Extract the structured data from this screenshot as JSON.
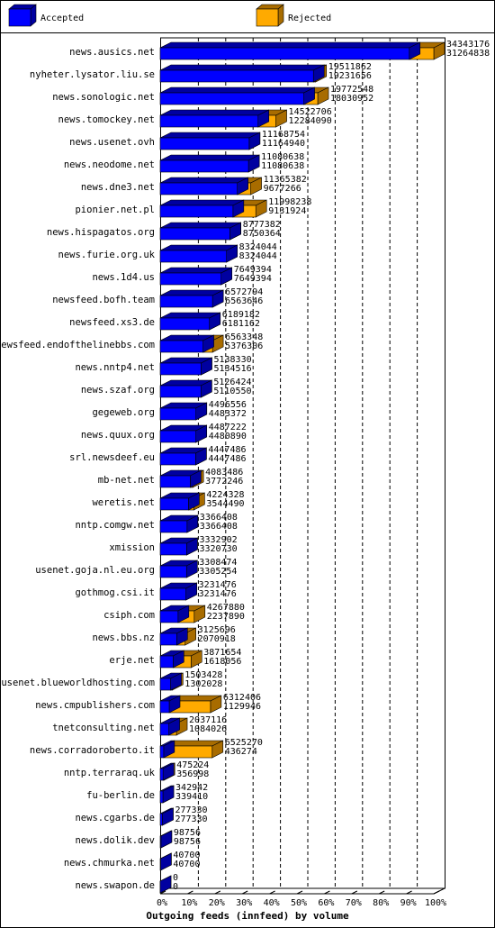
{
  "chart_data": {
    "type": "bar3d",
    "orientation": "horizontal",
    "title": "Outgoing feeds (innfeed) by volume",
    "categories": [
      "news.ausics.net",
      "nyheter.lysator.liu.se",
      "news.sonologic.net",
      "news.tomockey.net",
      "news.usenet.ovh",
      "news.neodome.net",
      "news.dne3.net",
      "pionier.net.pl",
      "news.hispagatos.org",
      "news.furie.org.uk",
      "news.1d4.us",
      "newsfeed.bofh.team",
      "newsfeed.xs3.de",
      "newsfeed.endofthelinebbs.com",
      "news.nntp4.net",
      "news.szaf.org",
      "gegeweb.org",
      "news.quux.org",
      "srl.newsdeef.eu",
      "mb-net.net",
      "weretis.net",
      "nntp.comgw.net",
      "xmission",
      "usenet.goja.nl.eu.org",
      "gothmog.csi.it",
      "csiph.com",
      "news.bbs.nz",
      "erje.net",
      "usenet.blueworldhosting.com",
      "news.cmpublishers.com",
      "tnetconsulting.net",
      "news.corradoroberto.it",
      "nntp.terraraq.uk",
      "fu-berlin.de",
      "news.cgarbs.de",
      "news.dolik.dev",
      "news.chmurka.net",
      "news.swapon.de"
    ],
    "totals": [
      34343176,
      19511862,
      19772548,
      14522706,
      11168754,
      11080638,
      11365382,
      11998238,
      8777382,
      8324044,
      7649394,
      6572794,
      6189182,
      6563348,
      5138330,
      5126424,
      4496556,
      4487222,
      4447486,
      4083486,
      4224328,
      3366408,
      3332902,
      3308474,
      3231476,
      4267880,
      3125696,
      3871654,
      1503428,
      6312406,
      2037116,
      6525270,
      475224,
      342942,
      277330,
      98756,
      40700,
      0
    ],
    "series": [
      {
        "name": "Accepted",
        "color": "#0000ff",
        "shade": "#0000a0",
        "values": [
          31264838,
          19231656,
          18030952,
          12284090,
          11164940,
          11080638,
          9677266,
          9131924,
          8750364,
          8324044,
          7649394,
          6563646,
          6181162,
          5376306,
          5134516,
          5110550,
          4483372,
          4480890,
          4447486,
          3772246,
          3544490,
          3366408,
          3320730,
          3305254,
          3231476,
          2237890,
          2070918,
          1618056,
          1302028,
          1129946,
          1084026,
          436274,
          356998,
          339410,
          277330,
          98756,
          40700,
          0
        ]
      },
      {
        "name": "Rejected",
        "color": "#ffaa00",
        "shade": "#a86c00",
        "values": [
          3078338,
          280206,
          1741596,
          2238616,
          3814,
          0,
          1688116,
          2866314,
          27018,
          0,
          0,
          9148,
          8020,
          1187042,
          3814,
          15874,
          13184,
          6332,
          0,
          311240,
          679838,
          0,
          12172,
          3220,
          0,
          2029990,
          1054778,
          2253598,
          201400,
          5182460,
          953090,
          6088996,
          118226,
          3532,
          0,
          0,
          0,
          0
        ]
      }
    ],
    "xlim": [
      0,
      34343176
    ],
    "xticks": [
      {
        "value": 0,
        "label": "0%"
      },
      {
        "value": 3434317.6,
        "label": "10%"
      },
      {
        "value": 6868635.2,
        "label": "20%"
      },
      {
        "value": 10302952.8,
        "label": "30%"
      },
      {
        "value": 13737270.4,
        "label": "40%"
      },
      {
        "value": 17171588,
        "label": "50%"
      },
      {
        "value": 20605905.6,
        "label": "60%"
      },
      {
        "value": 24040223.2,
        "label": "70%"
      },
      {
        "value": 27474540.8,
        "label": "80%"
      },
      {
        "value": 30908858.4,
        "label": "90%"
      },
      {
        "value": 34343176,
        "label": "100%"
      }
    ],
    "grid": true
  }
}
